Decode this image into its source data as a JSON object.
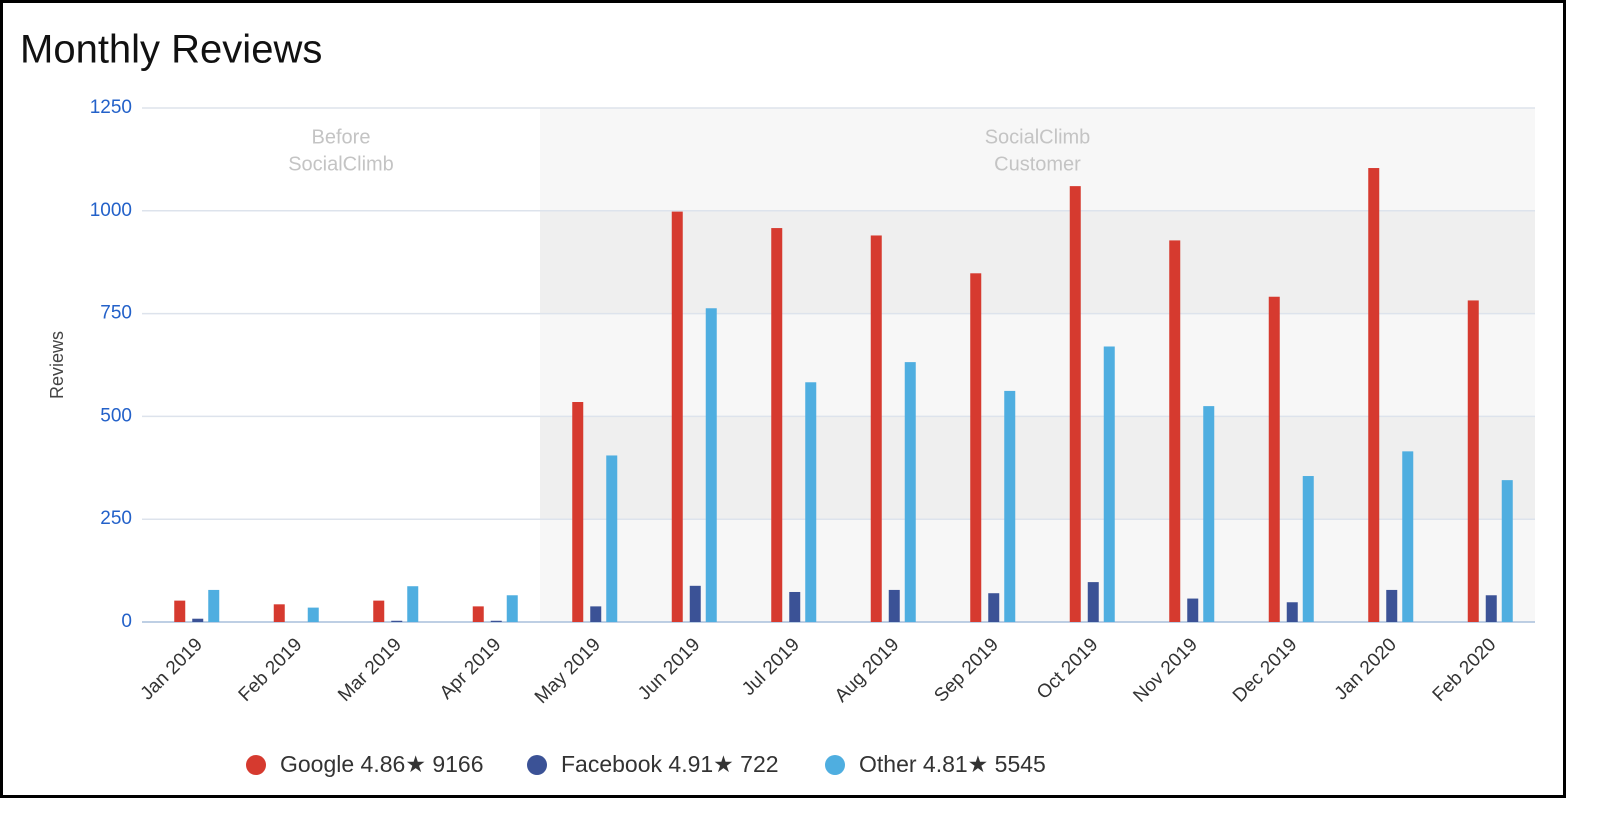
{
  "chart_data": {
    "type": "bar",
    "title": "Monthly Reviews",
    "y_label": "Reviews",
    "categories": [
      "Jan 2019",
      "Feb 2019",
      "Mar 2019",
      "Apr 2019",
      "May 2019",
      "Jun 2019",
      "Jul 2019",
      "Aug 2019",
      "Sep 2019",
      "Oct 2019",
      "Nov 2019",
      "Dec 2019",
      "Jan 2020",
      "Feb 2020"
    ],
    "series": [
      {
        "name": "Google 4.86★ 9166",
        "color": "#d63a2f",
        "values": [
          52,
          43,
          52,
          38,
          535,
          998,
          958,
          940,
          848,
          1060,
          928,
          791,
          1104,
          782
        ]
      },
      {
        "name": "Facebook 4.91★ 722",
        "color": "#3b5296",
        "values": [
          8,
          0,
          3,
          3,
          38,
          88,
          73,
          78,
          70,
          97,
          57,
          48,
          78,
          65
        ]
      },
      {
        "name": "Other 4.81★ 5545",
        "color": "#4faee0",
        "values": [
          78,
          35,
          87,
          65,
          405,
          763,
          583,
          632,
          562,
          670,
          525,
          355,
          415,
          345
        ]
      }
    ],
    "regions": [
      {
        "label": [
          "Before",
          "SocialClimb"
        ],
        "from": "Jan 2019",
        "to": "Apr 2019",
        "shaded": false
      },
      {
        "label": [
          "SocialClimb",
          "Customer"
        ],
        "from": "May 2019",
        "to": "Feb 2020",
        "shaded": true
      }
    ],
    "ylim": [
      0,
      1250
    ],
    "yticks": [
      0,
      250,
      500,
      750,
      1000,
      1250
    ],
    "grid": true
  }
}
